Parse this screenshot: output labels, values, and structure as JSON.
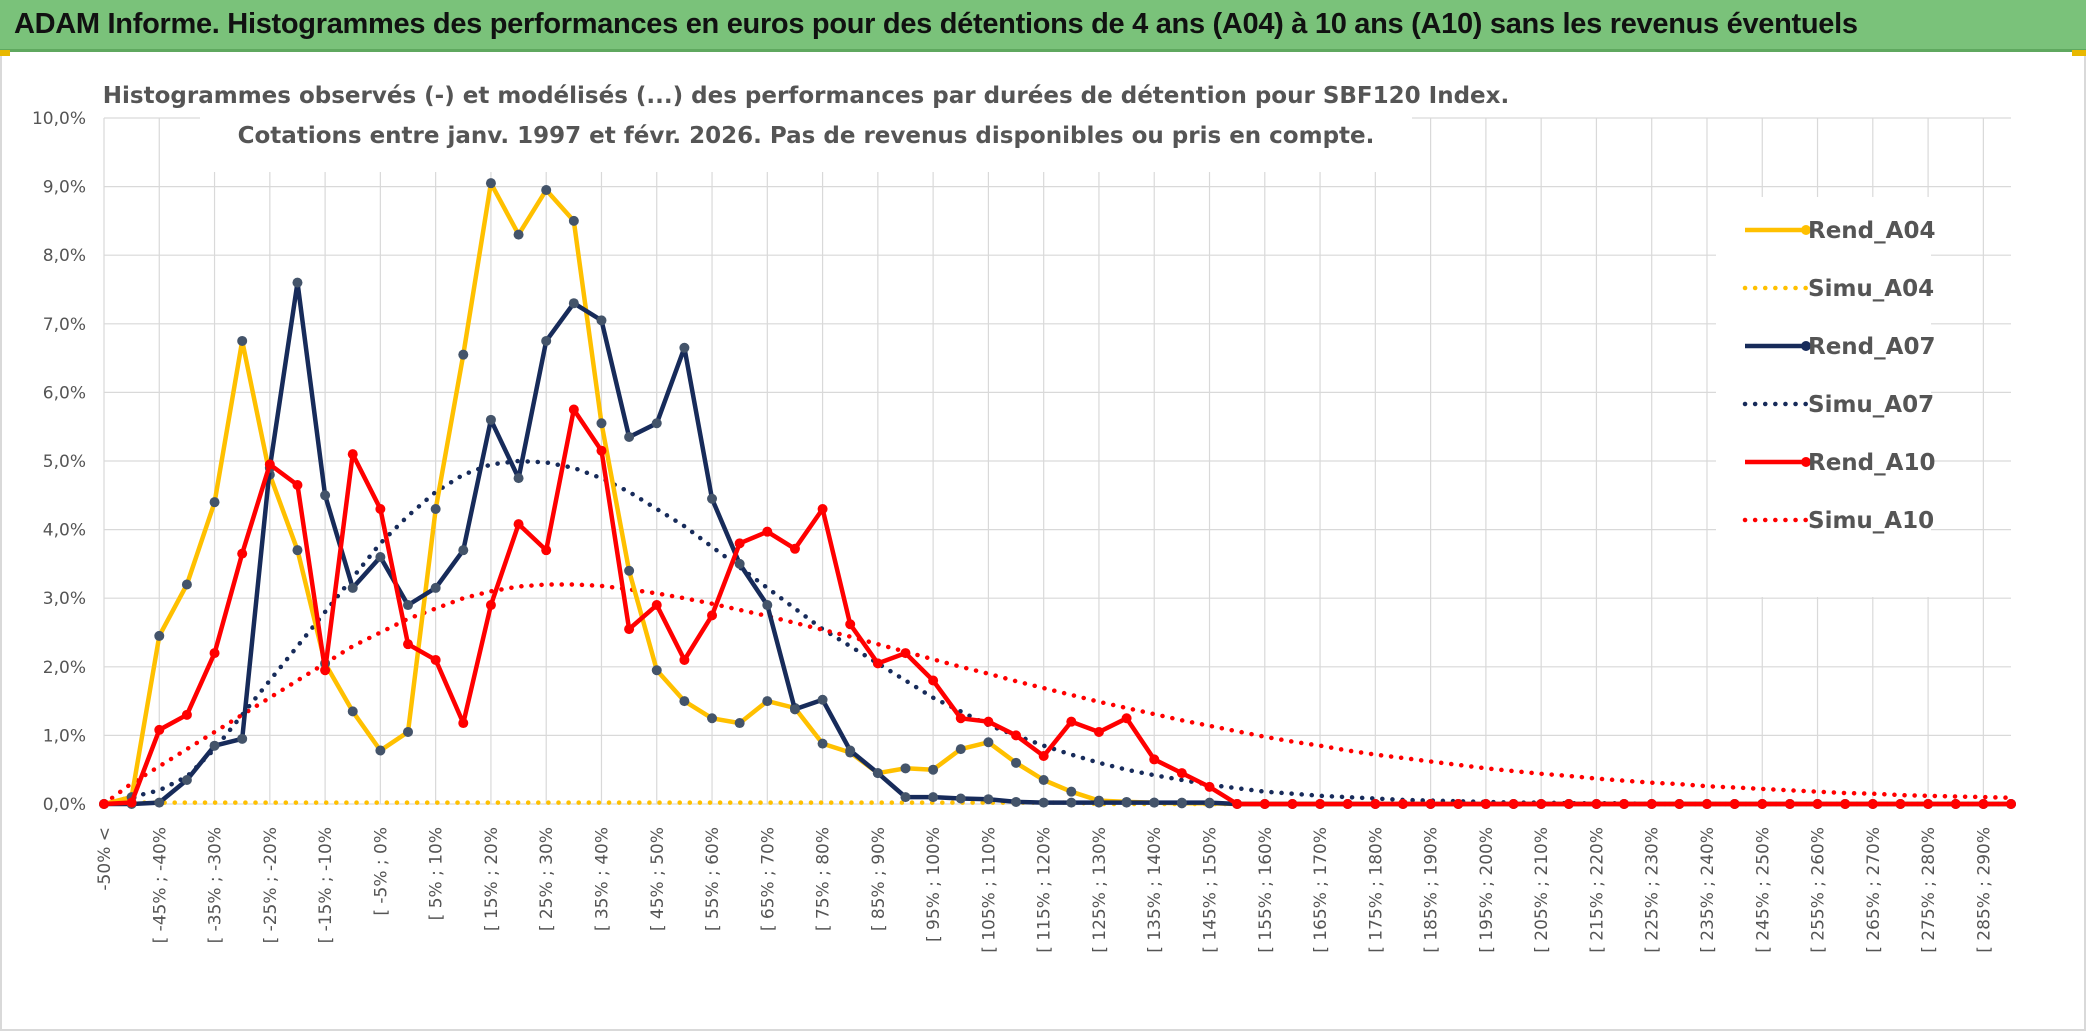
{
  "header": {
    "title": "ADAM Informe. Histogrammes des performances en euros pour des détentions de 4 ans (A04) à 10 ans (A10) sans les revenus éventuels"
  },
  "colors": {
    "banner": "#7ac27a",
    "A04": "#ffc000",
    "A07": "#172b5a",
    "A10": "#ff0000",
    "grid": "#d9d9d9"
  },
  "chart_data": {
    "type": "line",
    "title": "Histogrammes observés (-) et modélisés (...) des performances par durées de détention pour SBF120 Index.",
    "subtitle": "Cotations entre janv. 1997 et févr. 2026. Pas de revenus disponibles ou pris en compte.",
    "ylim": [
      0,
      10
    ],
    "y_ticks": [
      "0,0%",
      "1,0%",
      "2,0%",
      "3,0%",
      "4,0%",
      "5,0%",
      "6,0%",
      "7,0%",
      "8,0%",
      "9,0%",
      "10,0%"
    ],
    "grid": true,
    "legend_position": "right",
    "x_tick_labels": [
      "-50% <",
      "[ -45% ; -40%",
      "[ -35% ; -30%",
      "[ -25% ; -20%",
      "[ -15% ; -10%",
      "[ -5% ; 0%",
      "[ 5% ; 10%",
      "[ 15% ; 20%",
      "[ 25% ; 30%",
      "[ 35% ; 40%",
      "[ 45% ; 50%",
      "[ 55% ; 60%",
      "[ 65% ; 70%",
      "[ 75% ; 80%",
      "[ 85% ; 90%",
      "[ 95% ; 100%",
      "[ 105% ; 110%",
      "[ 115% ; 120%",
      "[ 125% ; 130%",
      "[ 135% ; 140%",
      "[ 145% ; 150%",
      "[ 155% ; 160%",
      "[ 165% ; 170%",
      "[ 175% ; 180%",
      "[ 185% ; 190%",
      "[ 195% ; 200%",
      "[ 205% ; 210%",
      "[ 215% ; 220%",
      "[ 225% ; 230%",
      "[ 235% ; 240%",
      "[ 245% ; 250%",
      "[ 255% ; 260%",
      "[ 265% ; 270%",
      "[ 275% ; 280%",
      "[ 285% ; 290%"
    ],
    "series": [
      {
        "name": "Rend_A04",
        "style": "solid",
        "color": "#ffc000",
        "values": [
          0,
          0.1,
          2.45,
          3.2,
          4.4,
          6.75,
          4.8,
          3.7,
          2.05,
          1.35,
          0.78,
          1.05,
          4.3,
          6.55,
          9.05,
          8.3,
          8.95,
          8.5,
          5.55,
          3.4,
          1.95,
          1.5,
          1.25,
          1.18,
          1.5,
          1.4,
          0.88,
          0.75,
          0.45,
          0.52,
          0.5,
          0.8,
          0.9,
          0.6,
          0.35,
          0.18,
          0.05,
          0.03,
          0.02,
          0.01,
          0.01,
          0,
          0,
          0,
          0,
          0,
          0,
          0,
          0,
          0,
          0,
          0,
          0,
          0,
          0,
          0,
          0,
          0,
          0,
          0,
          0,
          0,
          0,
          0,
          0,
          0,
          0,
          0,
          0,
          0
        ]
      },
      {
        "name": "Simu_A04",
        "style": "dotted",
        "color": "#ffc000",
        "values": [
          0,
          0.02,
          0.02,
          0.02,
          0.02,
          0.02,
          0.02,
          0.02,
          0.02,
          0.02,
          0.02,
          0.02,
          0.02,
          0.02,
          0.02,
          0.02,
          0.02,
          0.02,
          0.02,
          0.02,
          0.02,
          0.02,
          0.02,
          0.02,
          0.02,
          0.02,
          0.02,
          0.02,
          0.02,
          0.02,
          0.02,
          0.02,
          0.02,
          0.02,
          0.02,
          0.02,
          0,
          0,
          0,
          0,
          0,
          0,
          0,
          0,
          0,
          0,
          0,
          0,
          0,
          0,
          0,
          0,
          0,
          0,
          0,
          0,
          0,
          0,
          0,
          0,
          0,
          0,
          0,
          0,
          0,
          0,
          0,
          0,
          0,
          0
        ]
      },
      {
        "name": "Rend_A07",
        "style": "solid",
        "color": "#172b5a",
        "values": [
          0,
          0,
          0.02,
          0.35,
          0.85,
          0.95,
          4.9,
          7.6,
          4.5,
          3.15,
          3.6,
          2.9,
          3.15,
          3.7,
          5.6,
          4.75,
          6.75,
          7.3,
          7.05,
          5.35,
          5.55,
          6.65,
          4.45,
          3.5,
          2.9,
          1.38,
          1.52,
          0.78,
          0.45,
          0.1,
          0.1,
          0.08,
          0.07,
          0.03,
          0.02,
          0.02,
          0.02,
          0.02,
          0.02,
          0.02,
          0.02,
          0,
          0,
          0,
          0,
          0,
          0,
          0,
          0,
          0,
          0,
          0,
          0,
          0,
          0,
          0,
          0,
          0,
          0,
          0,
          0,
          0,
          0,
          0,
          0,
          0,
          0,
          0,
          0,
          0
        ]
      },
      {
        "name": "Simu_A07",
        "style": "dotted",
        "color": "#172b5a",
        "values": [
          0,
          0.1,
          0.2,
          0.4,
          0.8,
          1.3,
          1.8,
          2.3,
          2.8,
          3.3,
          3.8,
          4.2,
          4.55,
          4.8,
          4.95,
          5.0,
          4.98,
          4.9,
          4.75,
          4.55,
          4.3,
          4.05,
          3.75,
          3.45,
          3.15,
          2.85,
          2.55,
          2.3,
          2.05,
          1.8,
          1.55,
          1.35,
          1.15,
          1.0,
          0.85,
          0.72,
          0.6,
          0.5,
          0.42,
          0.35,
          0.28,
          0.23,
          0.18,
          0.15,
          0.12,
          0.1,
          0.08,
          0.06,
          0.05,
          0.04,
          0.03,
          0.02,
          0.02,
          0.01,
          0.01,
          0.01,
          0,
          0,
          0,
          0,
          0,
          0,
          0,
          0,
          0,
          0,
          0,
          0,
          0,
          0
        ]
      },
      {
        "name": "Rend_A10",
        "style": "solid",
        "color": "#ff0000",
        "values": [
          0,
          0.02,
          1.08,
          1.3,
          2.2,
          3.65,
          4.95,
          4.65,
          1.95,
          5.1,
          4.3,
          2.33,
          2.1,
          1.18,
          2.9,
          4.08,
          3.7,
          5.75,
          5.15,
          2.55,
          2.9,
          2.1,
          2.75,
          3.8,
          3.97,
          3.72,
          4.3,
          2.62,
          2.05,
          2.2,
          1.8,
          1.25,
          1.2,
          1.0,
          0.7,
          1.2,
          1.05,
          1.25,
          0.65,
          0.45,
          0.25,
          0,
          0,
          0,
          0,
          0,
          0,
          0,
          0,
          0,
          0,
          0,
          0,
          0,
          0,
          0,
          0,
          0,
          0,
          0,
          0,
          0,
          0,
          0,
          0,
          0,
          0,
          0,
          0,
          0
        ]
      },
      {
        "name": "Simu_A10",
        "style": "dotted",
        "color": "#ff0000",
        "values": [
          0,
          0.3,
          0.55,
          0.8,
          1.05,
          1.3,
          1.55,
          1.8,
          2.05,
          2.3,
          2.5,
          2.7,
          2.85,
          3.0,
          3.1,
          3.17,
          3.2,
          3.2,
          3.18,
          3.13,
          3.07,
          3.0,
          2.92,
          2.83,
          2.74,
          2.64,
          2.54,
          2.44,
          2.33,
          2.22,
          2.11,
          2.0,
          1.9,
          1.79,
          1.69,
          1.59,
          1.49,
          1.4,
          1.31,
          1.22,
          1.14,
          1.06,
          0.98,
          0.91,
          0.85,
          0.78,
          0.72,
          0.67,
          0.62,
          0.57,
          0.52,
          0.48,
          0.44,
          0.41,
          0.37,
          0.34,
          0.31,
          0.29,
          0.26,
          0.24,
          0.22,
          0.2,
          0.18,
          0.16,
          0.15,
          0.13,
          0.12,
          0.11,
          0.1,
          0.09
        ]
      }
    ]
  }
}
